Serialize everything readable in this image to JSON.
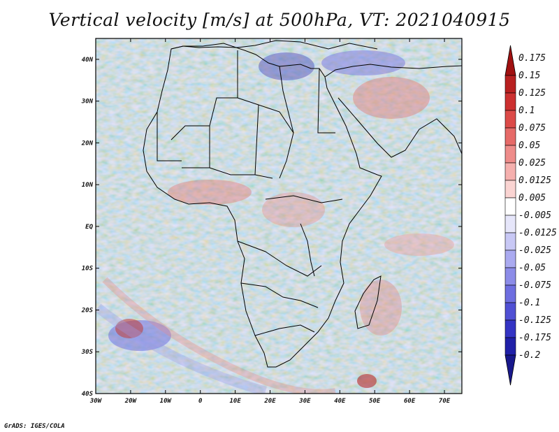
{
  "title": "Vertical velocity [m/s] at 500hPa, VT: 2021040915",
  "credit": "GrADS: IGES/COLA",
  "map": {
    "lat_range": [
      -40,
      45
    ],
    "lon_range": [
      -30,
      75
    ],
    "lat_ticks": [
      "40N",
      "30N",
      "20N",
      "10N",
      "EQ",
      "10S",
      "20S",
      "30S",
      "40S"
    ],
    "lon_ticks": [
      "30W",
      "20W",
      "10W",
      "0",
      "10E",
      "20E",
      "30E",
      "40E",
      "50E",
      "60E",
      "70E"
    ]
  },
  "colorbar": {
    "labels": [
      "0.175",
      "0.15",
      "0.125",
      "0.1",
      "0.075",
      "0.05",
      "0.025",
      "0.0125",
      "0.005",
      "-0.005",
      "-0.0125",
      "-0.025",
      "-0.05",
      "-0.075",
      "-0.1",
      "-0.125",
      "-0.175",
      "-0.2"
    ],
    "colors": [
      "#a01010",
      "#b82020",
      "#cc3030",
      "#dc4a48",
      "#e66a68",
      "#ee8c8a",
      "#f5b0ae",
      "#fad4d2",
      "#ffffff",
      "#e6e6fa",
      "#c8c8f5",
      "#aaaaf0",
      "#8c8ce8",
      "#6e6ee0",
      "#5050d4",
      "#3434c4",
      "#2020a8",
      "#18188c"
    ]
  }
}
